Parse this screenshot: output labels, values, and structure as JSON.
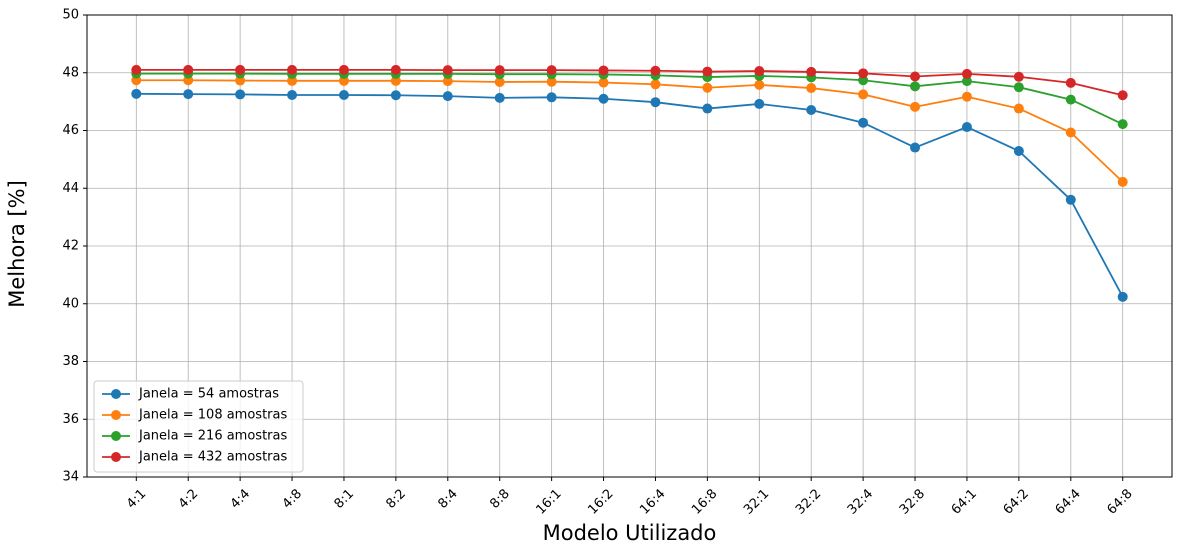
{
  "chart_data": {
    "type": "line",
    "title": "",
    "xlabel": "Modelo Utilizado",
    "ylabel": "Melhora [%]",
    "categories": [
      "4:1",
      "4:2",
      "4:4",
      "4:8",
      "8:1",
      "8:2",
      "8:4",
      "8:8",
      "16:1",
      "16:2",
      "16:4",
      "16:8",
      "32:1",
      "32:2",
      "32:4",
      "32:8",
      "64:1",
      "64:2",
      "64:4",
      "64:8"
    ],
    "ylim": [
      34,
      50
    ],
    "yticks": [
      34,
      36,
      38,
      40,
      42,
      44,
      46,
      48,
      50
    ],
    "grid": true,
    "legend_position": "lower-left",
    "series": [
      {
        "name": "Janela = 54 amostras",
        "color": "#1f77b4",
        "values": [
          47.27,
          47.26,
          47.25,
          47.23,
          47.23,
          47.22,
          47.19,
          47.13,
          47.15,
          47.1,
          46.98,
          46.76,
          46.92,
          46.71,
          46.27,
          45.41,
          46.12,
          45.29,
          43.6,
          40.24
        ]
      },
      {
        "name": "Janela = 108 amostras",
        "color": "#ff7f0e",
        "values": [
          47.74,
          47.74,
          47.73,
          47.72,
          47.72,
          47.72,
          47.71,
          47.68,
          47.69,
          47.66,
          47.6,
          47.48,
          47.58,
          47.47,
          47.25,
          46.82,
          47.17,
          46.76,
          45.93,
          44.22
        ]
      },
      {
        "name": "Janela = 216 amostras",
        "color": "#2ca02c",
        "values": [
          47.97,
          47.97,
          47.97,
          47.96,
          47.96,
          47.96,
          47.96,
          47.95,
          47.95,
          47.94,
          47.91,
          47.85,
          47.89,
          47.84,
          47.74,
          47.53,
          47.71,
          47.5,
          47.07,
          46.22
        ]
      },
      {
        "name": "Janela = 432 amostras",
        "color": "#d62728",
        "values": [
          48.1,
          48.1,
          48.1,
          48.1,
          48.1,
          48.1,
          48.09,
          48.09,
          48.09,
          48.08,
          48.07,
          48.04,
          48.06,
          48.03,
          47.98,
          47.87,
          47.96,
          47.86,
          47.65,
          47.22
        ]
      }
    ]
  }
}
